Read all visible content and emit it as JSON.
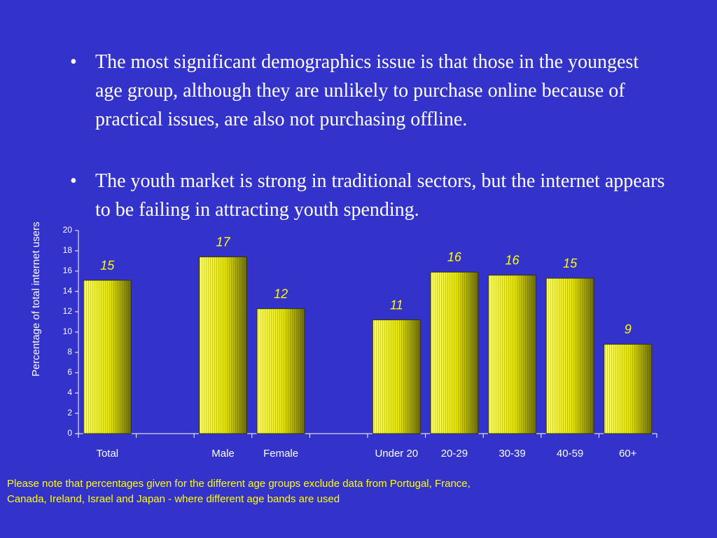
{
  "bullets": [
    "The most significant demographics issue is that those in the youngest age group, although they are unlikely to purchase online because of practical issues, are also not purchasing offline.",
    "The youth market is strong in traditional sectors, but the internet appears to be failing in attracting youth spending."
  ],
  "note": [
    "Please note that percentages given for the different age groups exclude data from Portugal, France,",
    "Canada, Ireland, Israel and Japan - where different age bands are used"
  ],
  "chart_data": {
    "type": "bar",
    "y_label": "Percentage of total internet users",
    "categories": [
      "Total",
      null,
      "Male",
      "Female",
      null,
      "Under 20",
      "20-29",
      "30-39",
      "40-59",
      "60+"
    ],
    "values": [
      15.1,
      null,
      17.4,
      12.3,
      null,
      11.2,
      15.9,
      15.6,
      15.3,
      8.8
    ],
    "value_labels": [
      "15",
      null,
      "17",
      "12",
      null,
      "11",
      "16",
      "16",
      "15",
      "9"
    ],
    "color": "#ffff00",
    "ylim": [
      0,
      20
    ],
    "yticks": [
      0,
      2,
      4,
      6,
      8,
      10,
      12,
      14,
      16,
      18,
      20
    ]
  }
}
